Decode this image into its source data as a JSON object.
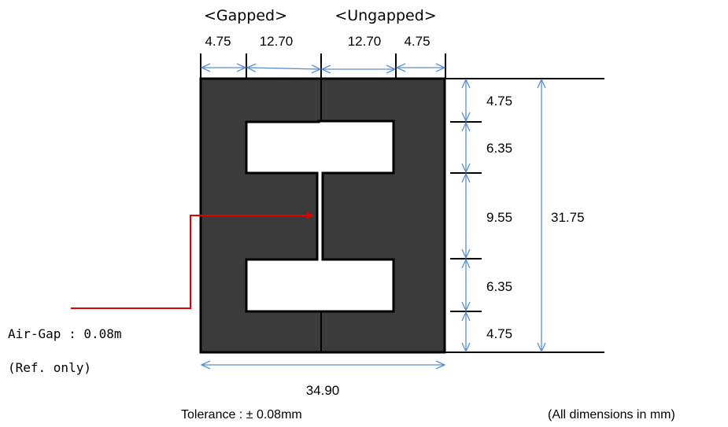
{
  "headers": {
    "gapped": "<Gapped>",
    "ungapped": "<Ungapped>"
  },
  "top_dims": [
    "4.75",
    "12.70",
    "12.70",
    "4.75"
  ],
  "right_dims": [
    "4.75",
    "6.35",
    "9.55",
    "6.35",
    "4.75"
  ],
  "overall_height": "31.75",
  "overall_width": "34.90",
  "air_gap": {
    "label": "Air-Gap : 0.08m",
    "note": "(Ref. only)"
  },
  "tolerance": "Tolerance : ± 0.08mm",
  "units_note": "(All dimensions in mm)",
  "colors": {
    "core": "#3b3b3b",
    "dim_line": "#5b8ecf",
    "leader": "#e00000"
  }
}
